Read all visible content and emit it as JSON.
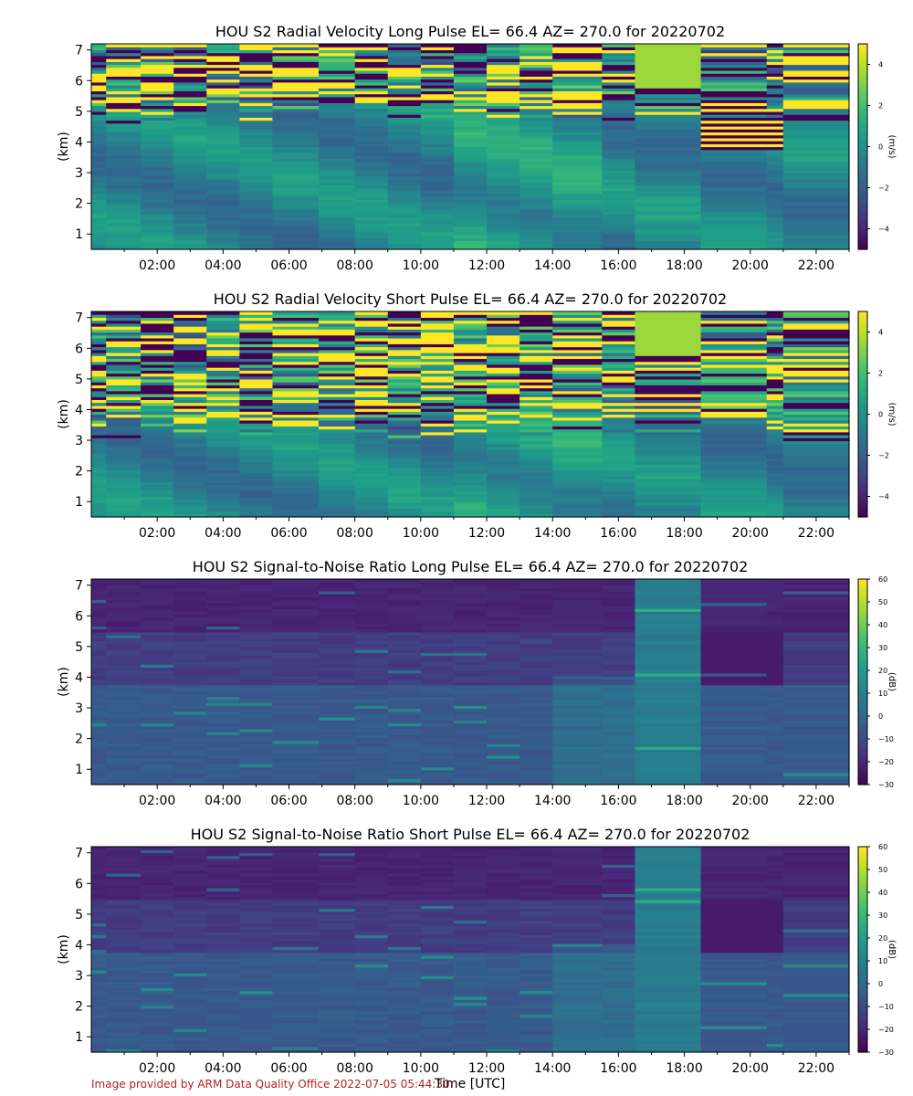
{
  "figure": {
    "credit": "Image provided by ARM Data Quality Office 2022-07-05 05:44:30",
    "xlabel": "Time [UTC]"
  },
  "colormaps": {
    "viridis": [
      "#440154",
      "#482878",
      "#3e4a89",
      "#31688e",
      "#26828e",
      "#1f9e89",
      "#35b779",
      "#6ece58",
      "#b5de2b",
      "#fde725"
    ]
  },
  "chart_data": [
    {
      "type": "heatmap",
      "title": "HOU S2 Radial Velocity Long Pulse EL= 66.4 AZ= 270.0 for 20220702",
      "ylabel": "(km)",
      "colorbar_label": "(m/s)",
      "colorbar_ticks": [
        "4",
        "2",
        "0",
        "−2",
        "−4"
      ],
      "clim": [
        -5,
        5
      ],
      "ylim": [
        0.5,
        7.2
      ],
      "xlim": [
        0,
        23
      ],
      "x_ticks": [
        "02:00",
        "04:00",
        "06:00",
        "08:00",
        "10:00",
        "12:00",
        "14:00",
        "16:00",
        "18:00",
        "20:00",
        "22:00"
      ],
      "y_ticks": [
        "1",
        "2",
        "3",
        "4",
        "5",
        "6",
        "7"
      ],
      "variable": "velocity_long"
    },
    {
      "type": "heatmap",
      "title": "HOU S2 Radial Velocity Short Pulse EL= 66.4 AZ= 270.0 for 20220702",
      "ylabel": "(km)",
      "colorbar_label": "(m/s)",
      "colorbar_ticks": [
        "4",
        "2",
        "0",
        "−2",
        "−4"
      ],
      "clim": [
        -5,
        5
      ],
      "ylim": [
        0.5,
        7.2
      ],
      "xlim": [
        0,
        23
      ],
      "x_ticks": [
        "02:00",
        "04:00",
        "06:00",
        "08:00",
        "10:00",
        "12:00",
        "14:00",
        "16:00",
        "18:00",
        "20:00",
        "22:00"
      ],
      "y_ticks": [
        "1",
        "2",
        "3",
        "4",
        "5",
        "6",
        "7"
      ],
      "variable": "velocity_short"
    },
    {
      "type": "heatmap",
      "title": "HOU S2 Signal-to-Noise Ratio Long Pulse EL= 66.4 AZ= 270.0 for 20220702",
      "ylabel": "(km)",
      "colorbar_label": "(dB)",
      "colorbar_ticks": [
        "60",
        "50",
        "40",
        "30",
        "20",
        "10",
        "0",
        "−10",
        "−20",
        "−30"
      ],
      "clim": [
        -30,
        60
      ],
      "ylim": [
        0.5,
        7.2
      ],
      "xlim": [
        0,
        23
      ],
      "x_ticks": [
        "02:00",
        "04:00",
        "06:00",
        "08:00",
        "10:00",
        "12:00",
        "14:00",
        "16:00",
        "18:00",
        "20:00",
        "22:00"
      ],
      "y_ticks": [
        "1",
        "2",
        "3",
        "4",
        "5",
        "6",
        "7"
      ],
      "variable": "snr_long"
    },
    {
      "type": "heatmap",
      "title": "HOU S2 Signal-to-Noise Ratio Short Pulse EL= 66.4 AZ= 270.0 for 20220702",
      "ylabel": "(km)",
      "colorbar_label": "(dB)",
      "colorbar_ticks": [
        "60",
        "50",
        "40",
        "30",
        "20",
        "10",
        "0",
        "−10",
        "−20",
        "−30"
      ],
      "clim": [
        -30,
        60
      ],
      "ylim": [
        0.5,
        7.2
      ],
      "xlim": [
        0,
        23
      ],
      "x_ticks": [
        "02:00",
        "04:00",
        "06:00",
        "08:00",
        "10:00",
        "12:00",
        "14:00",
        "16:00",
        "18:00",
        "20:00",
        "22:00"
      ],
      "y_ticks": [
        "1",
        "2",
        "3",
        "4",
        "5",
        "6",
        "7"
      ],
      "variable": "snr_short"
    }
  ]
}
